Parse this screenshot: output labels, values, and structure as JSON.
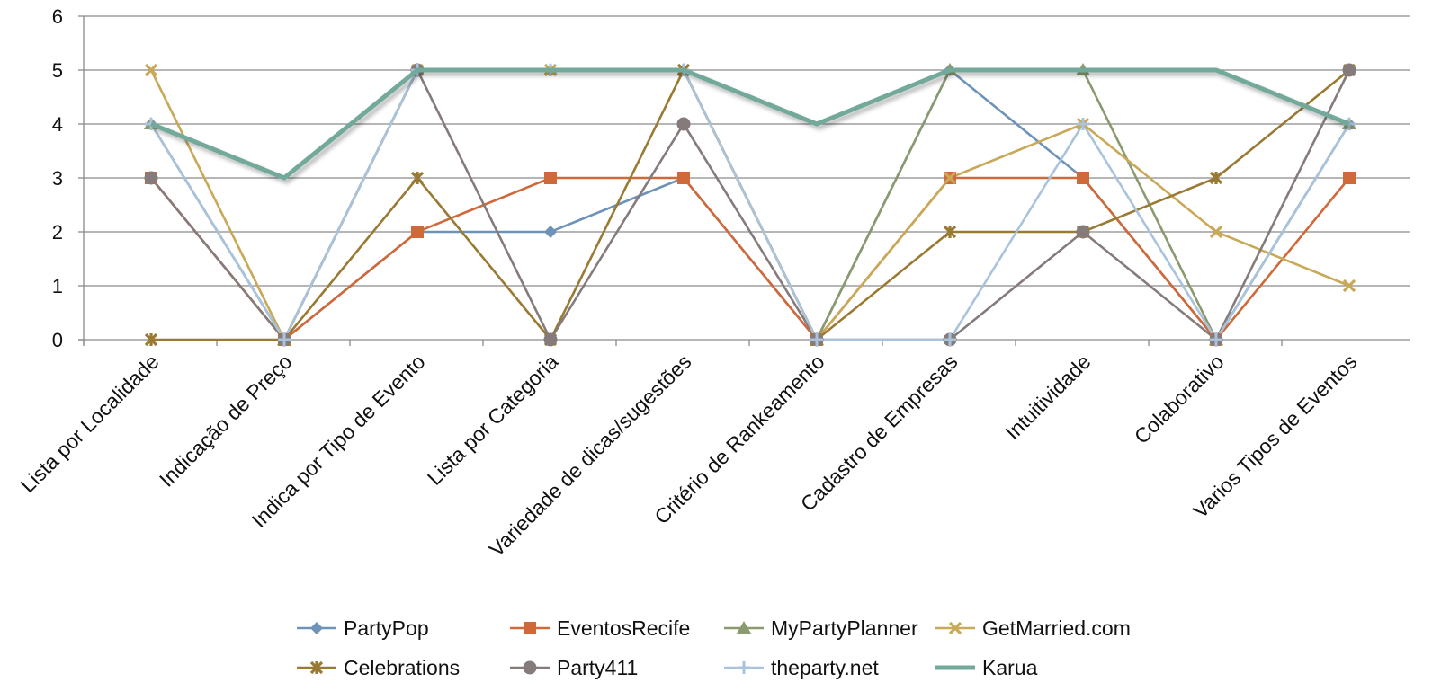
{
  "chart_data": {
    "type": "line",
    "categories": [
      "Lista por Localidade",
      "Indicação de Preço",
      "Indica por Tipo de Evento",
      "Lista por Categoria",
      "Variedade de dicas/sugestões",
      "Critério de Rankeamento",
      "Cadastro de Empresas",
      "Intuitividade",
      "Colaborativo",
      "Varios Tipos de Eventos"
    ],
    "ylim": [
      0,
      6
    ],
    "yticks": [
      "0",
      "1",
      "2",
      "3",
      "4",
      "5",
      "6"
    ],
    "grid": true,
    "legend_position": "bottom",
    "series": [
      {
        "name": "PartyPop",
        "color": "#6e93b8",
        "marker": "diamond",
        "values": [
          4,
          0,
          2,
          2,
          3,
          0,
          5,
          3,
          0,
          4
        ]
      },
      {
        "name": "EventosRecife",
        "color": "#d0693a",
        "marker": "square",
        "values": [
          3,
          0,
          2,
          3,
          3,
          0,
          3,
          3,
          0,
          3
        ]
      },
      {
        "name": "MyPartyPlanner",
        "color": "#8b9a6e",
        "marker": "triangle",
        "values": [
          4,
          0,
          5,
          5,
          5,
          0,
          5,
          5,
          0,
          4
        ]
      },
      {
        "name": "GetMarried.com",
        "color": "#c9a857",
        "marker": "x",
        "values": [
          5,
          0,
          5,
          5,
          5,
          0,
          3,
          4,
          2,
          1
        ]
      },
      {
        "name": "Celebrations",
        "color": "#9a7a33",
        "marker": "star",
        "values": [
          0,
          0,
          3,
          0,
          5,
          0,
          2,
          2,
          3,
          5
        ]
      },
      {
        "name": "Party411",
        "color": "#857b7b",
        "marker": "circle",
        "values": [
          3,
          0,
          5,
          0,
          4,
          0,
          0,
          2,
          0,
          5
        ]
      },
      {
        "name": "theparty.net",
        "color": "#a9c3dd",
        "marker": "plus",
        "values": [
          4,
          0,
          5,
          5,
          5,
          0,
          0,
          4,
          0,
          4
        ]
      },
      {
        "name": "Karua",
        "color": "#73a99a",
        "marker": "none",
        "emphasis": true,
        "values": [
          4,
          3,
          5,
          5,
          5,
          4,
          5,
          5,
          5,
          4
        ]
      }
    ]
  }
}
